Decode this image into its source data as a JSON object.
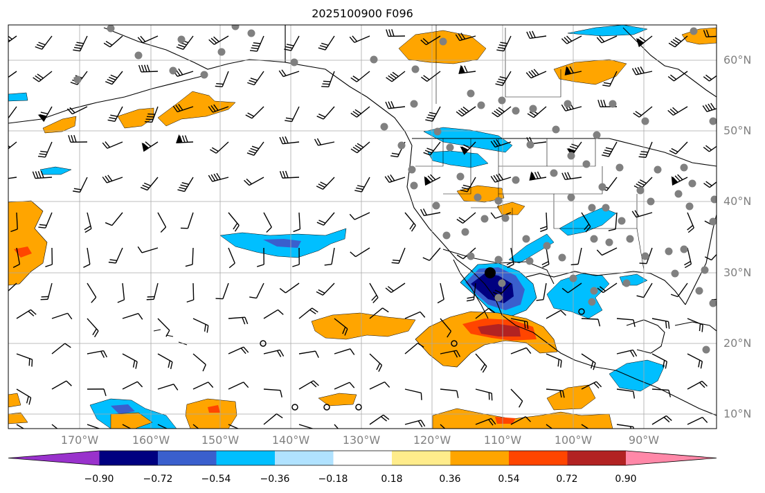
{
  "title": "2025100900 F096",
  "lat_labels": [
    "60°N",
    "50°N",
    "40°N",
    "30°N",
    "20°N",
    "10°N"
  ],
  "lon_labels": [
    "170°W",
    "160°W",
    "150°W",
    "140°W",
    "130°W",
    "120°W",
    "110°W",
    "100°W",
    "90°W"
  ],
  "colorbar": {
    "colors": [
      "#9932cc",
      "#000080",
      "#3a5fcd",
      "#00bfff",
      "#b0e2ff",
      "#ffffff",
      "#ffec8b",
      "#ffa500",
      "#ff4500",
      "#b22222",
      "#ff88a8"
    ],
    "tick_labels": [
      "−0.90",
      "−0.72",
      "−0.54",
      "−0.36",
      "−0.18",
      "0.18",
      "0.36",
      "0.54",
      "0.72",
      "0.90"
    ]
  },
  "colors": {
    "orange": "#ffa500",
    "light_blue": "#b0e2ff",
    "sky_blue": "#00bfff",
    "mid_blue": "#3a5fcd",
    "navy": "#000080",
    "red_orange": "#ff4500",
    "dark_red": "#b22222",
    "station_gray": "#808080",
    "grid_gray": "#a9a9a9"
  }
}
